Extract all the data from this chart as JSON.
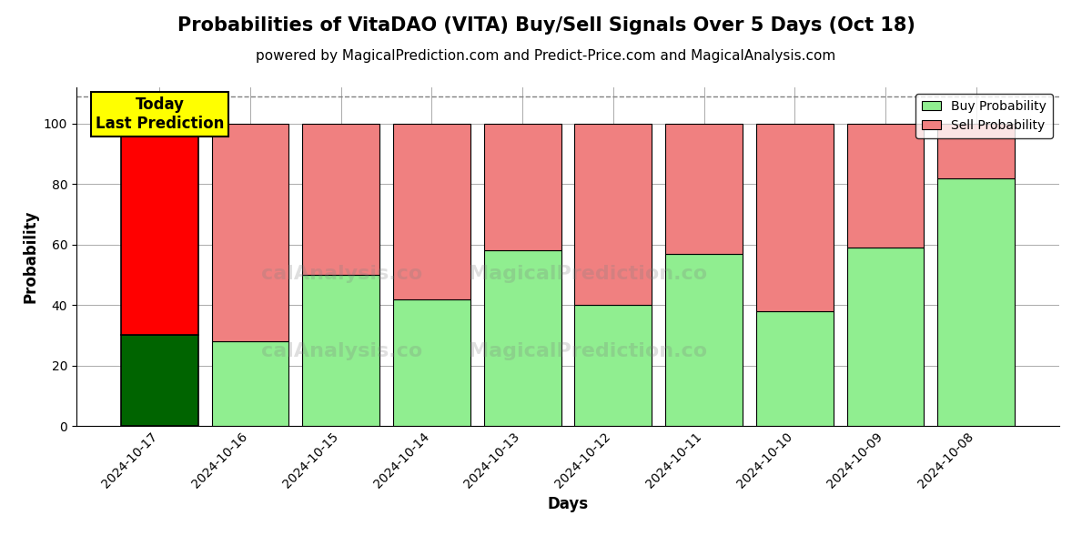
{
  "title": "Probabilities of VitaDAO (VITA) Buy/Sell Signals Over 5 Days (Oct 18)",
  "subtitle": "powered by MagicalPrediction.com and Predict-Price.com and MagicalAnalysis.com",
  "xlabel": "Days",
  "ylabel": "Probability",
  "categories": [
    "2024-10-17",
    "2024-10-16",
    "2024-10-15",
    "2024-10-14",
    "2024-10-13",
    "2024-10-12",
    "2024-10-11",
    "2024-10-10",
    "2024-10-09",
    "2024-10-08"
  ],
  "buy_values": [
    30,
    28,
    50,
    42,
    58,
    40,
    57,
    38,
    59,
    82
  ],
  "sell_values": [
    70,
    72,
    50,
    58,
    42,
    60,
    43,
    62,
    41,
    18
  ],
  "today_buy_color": "#006400",
  "today_sell_color": "#FF0000",
  "buy_color": "#90EE90",
  "sell_color": "#F08080",
  "ylim": [
    0,
    112
  ],
  "yticks": [
    0,
    20,
    40,
    60,
    80,
    100
  ],
  "dashed_line_y": 109,
  "watermark_texts_left": [
    "calAnalysis.co",
    "calAnalysis.co",
    "calA"
  ],
  "watermark_texts_right": [
    "MagicalPrediction.com",
    "MagicalPrediction.com"
  ],
  "legend_buy_label": "Buy Probability",
  "legend_sell_label": "Sell Probability",
  "annotation_text": "Today\nLast Prediction",
  "bar_width": 0.85,
  "grid_color": "#aaaaaa",
  "background_color": "#ffffff",
  "title_fontsize": 15,
  "subtitle_fontsize": 11,
  "axis_label_fontsize": 12
}
